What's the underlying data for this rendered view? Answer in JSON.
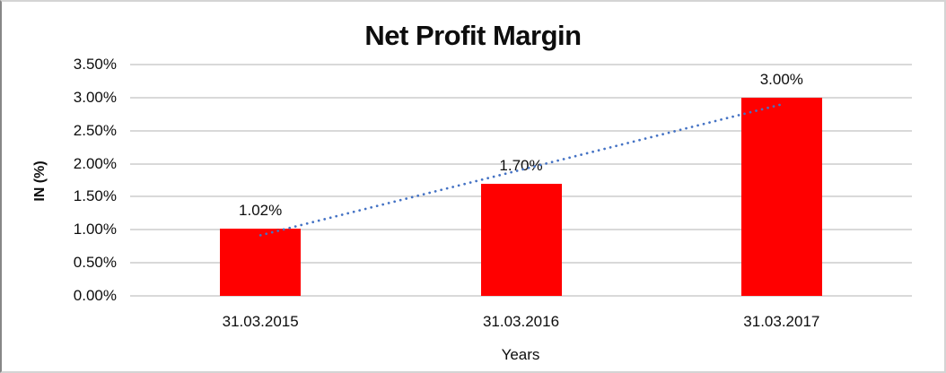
{
  "chart_data": {
    "type": "bar",
    "title": "Net Profit Margin",
    "xlabel": "Years",
    "ylabel": "IN (%)",
    "categories": [
      "31.03.2015",
      "31.03.2016",
      "31.03.2017"
    ],
    "values": [
      1.02,
      1.7,
      3.0
    ],
    "data_labels": [
      "1.02%",
      "1.70%",
      "3.00%"
    ],
    "ylim": [
      0,
      3.5
    ],
    "ytick_step": 0.5,
    "yticks": [
      {
        "value": 0.0,
        "label": "0.00%"
      },
      {
        "value": 0.5,
        "label": "0.50%"
      },
      {
        "value": 1.0,
        "label": "1.00%"
      },
      {
        "value": 1.5,
        "label": "1.50%"
      },
      {
        "value": 2.0,
        "label": "2.00%"
      },
      {
        "value": 2.5,
        "label": "2.50%"
      },
      {
        "value": 3.0,
        "label": "3.00%"
      },
      {
        "value": 3.5,
        "label": "3.50%"
      }
    ],
    "grid": true,
    "legend": false,
    "bar_color": "#ff0000",
    "gridline_color": "#d9d9d9",
    "text_color": "#0d0d0d",
    "trendline": {
      "shape": "linear",
      "style": "dotted",
      "color": "#4472c4",
      "fit_values": [
        0.917,
        1.907,
        2.897
      ]
    }
  }
}
